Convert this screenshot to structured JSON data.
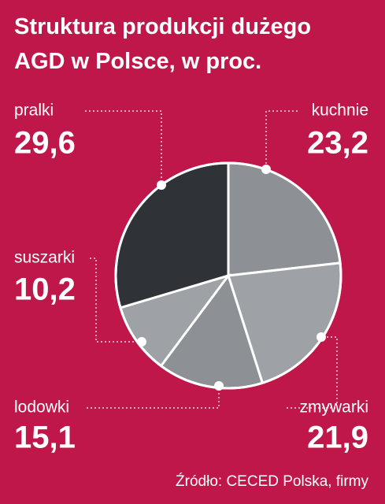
{
  "chart_data": {
    "type": "pie",
    "title": "Struktura produkcji dużego AGD w Polsce, w proc.",
    "categories": [
      "kuchnie",
      "zmywarki",
      "lodowki",
      "suszarki",
      "pralki"
    ],
    "values": [
      23.2,
      21.9,
      15.1,
      10.2,
      29.6
    ],
    "value_labels": [
      "23,2",
      "21,9",
      "15,1",
      "10,2",
      "29,6"
    ],
    "colors": [
      "#8d9195",
      "#9ea2a6",
      "#8d9195",
      "#9ea2a6",
      "#2f3338"
    ],
    "source": "Źródło: CECED Polska, firmy"
  }
}
